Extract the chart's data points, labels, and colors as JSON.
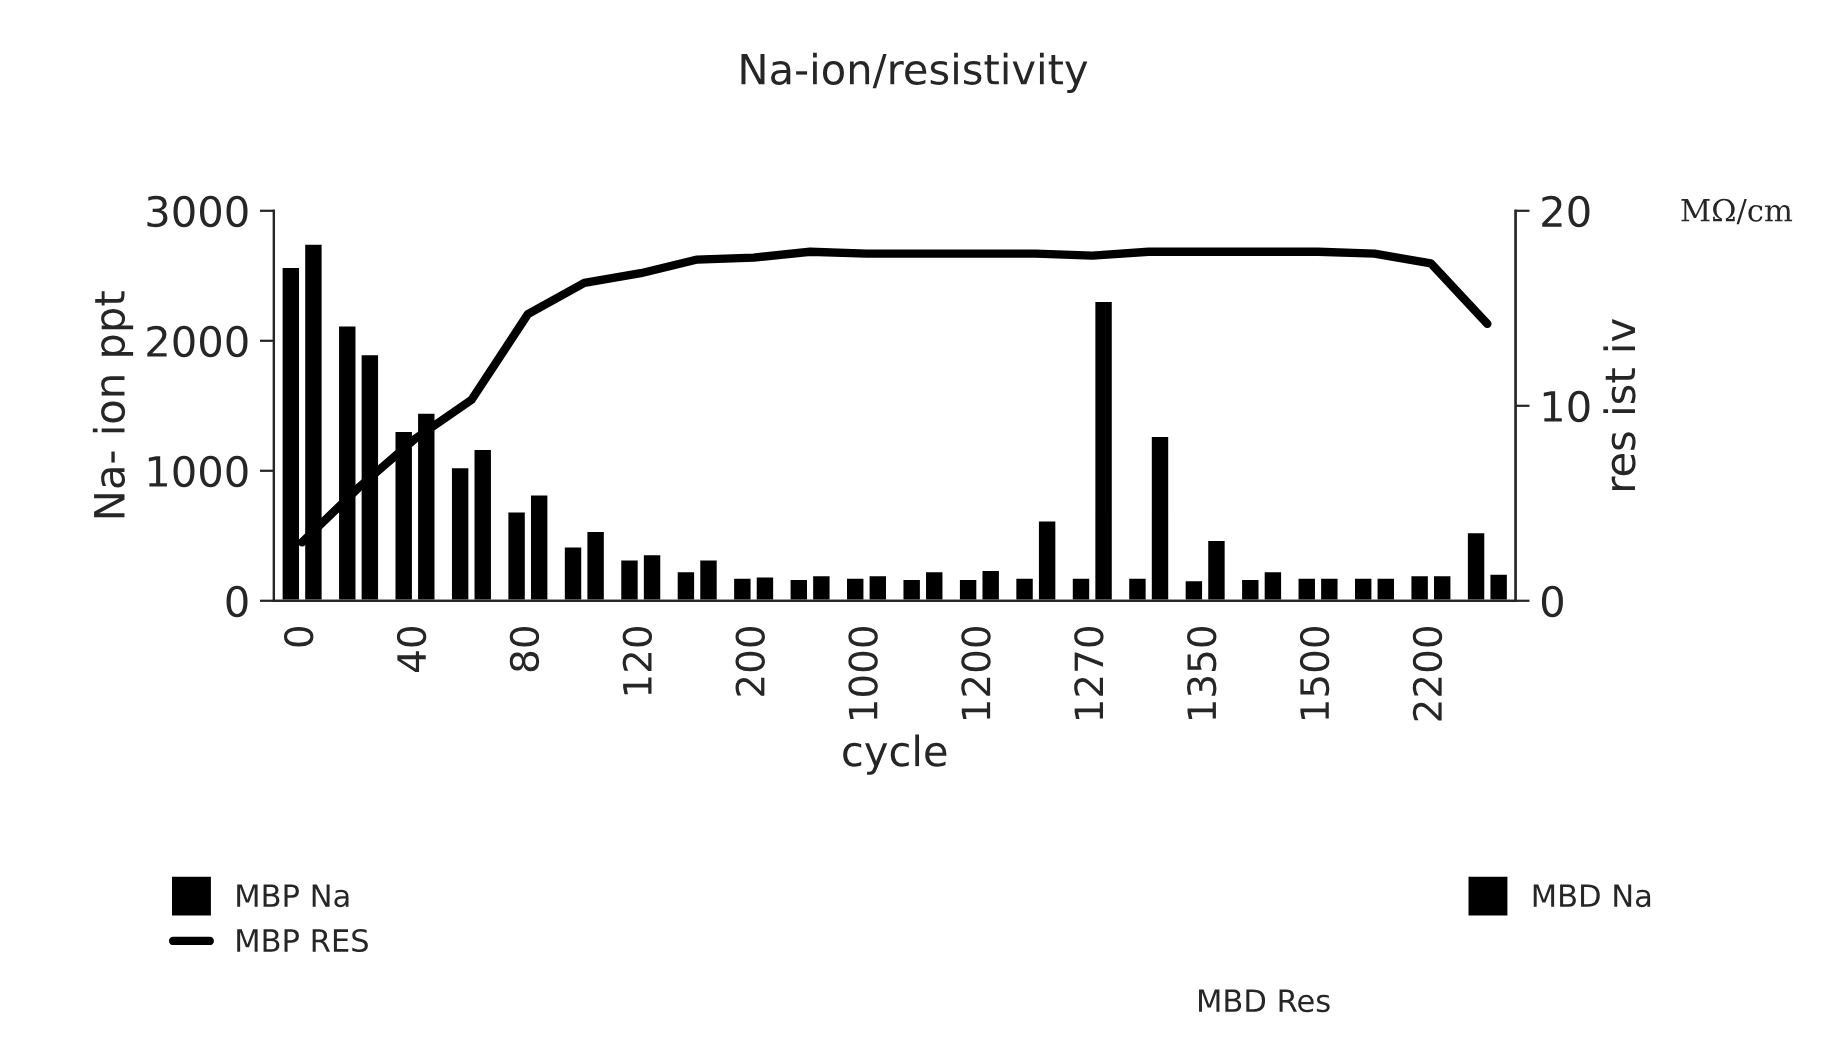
{
  "chart_data": {
    "type": "bar",
    "title": "Na-ion/resistivity",
    "xlabel": "cycle",
    "ylabel": "Na- ion ppt",
    "y2label": "res ist iv",
    "annotations": [
      "MΩ/cm",
      "MBD Res"
    ],
    "categories": [
      "0",
      null,
      "40",
      null,
      "80",
      null,
      "120",
      null,
      "200",
      null,
      "1000",
      null,
      "1200",
      null,
      "1270",
      null,
      "1350",
      null,
      "1500",
      null,
      "2200",
      null
    ],
    "series": [
      {
        "name": "MBP Na",
        "color": "#000000",
        "values": [
          2570,
          2120,
          1310,
          1030,
          690,
          420,
          320,
          230,
          180,
          170,
          180,
          170,
          170,
          180,
          180,
          180,
          160,
          170,
          180,
          180,
          200,
          530
        ]
      },
      {
        "name": "MBD Na",
        "color": "#000000",
        "values": [
          2750,
          1900,
          1450,
          1170,
          820,
          540,
          360,
          320,
          190,
          200,
          200,
          230,
          240,
          620,
          2310,
          1270,
          470,
          230,
          180,
          180,
          200,
          210
        ]
      },
      {
        "name": "MBP RES",
        "type": "line",
        "axis": "y2",
        "color": "#000000",
        "values": [
          3.0,
          5.8,
          8.3,
          10.3,
          14.7,
          16.3,
          16.8,
          17.5,
          17.6,
          17.9,
          17.8,
          17.8,
          17.8,
          17.8,
          17.7,
          17.9,
          17.9,
          17.9,
          17.9,
          17.8,
          17.3,
          14.2
        ]
      }
    ],
    "ylim": [
      0,
      3000
    ],
    "yticks": [
      0,
      1000,
      2000,
      3000
    ],
    "y2lim": [
      0,
      20
    ],
    "y2ticks": [
      0,
      10,
      20
    ],
    "grid": false,
    "legend": "bottom"
  }
}
